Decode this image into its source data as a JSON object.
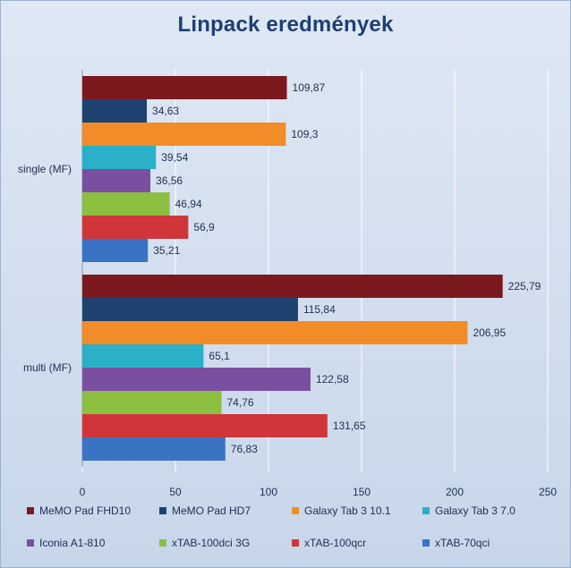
{
  "chart_data": {
    "type": "bar",
    "orientation": "horizontal",
    "title": "Linpack eredmények",
    "xlabel": "",
    "ylabel": "",
    "xlim": [
      0,
      250
    ],
    "ticks": [
      0,
      50,
      100,
      150,
      200,
      250
    ],
    "grid": true,
    "legend_position": "bottom",
    "categories": [
      "single (MF)",
      "multi (MF)"
    ],
    "series": [
      {
        "name": "MeMO Pad FHD10",
        "color": "#7a1a1e",
        "values": [
          109.87,
          225.79
        ],
        "labels": [
          "109,87",
          "225,79"
        ]
      },
      {
        "name": "MeMO Pad HD7",
        "color": "#1f4270",
        "values": [
          34.63,
          115.84
        ],
        "labels": [
          "34,63",
          "115,84"
        ]
      },
      {
        "name": "Galaxy Tab 3 10.1",
        "color": "#f28c28",
        "values": [
          109.3,
          206.95
        ],
        "labels": [
          "109,3",
          "206,95"
        ]
      },
      {
        "name": "Galaxy Tab 3 7.0",
        "color": "#2ab0c8",
        "values": [
          39.54,
          65.1
        ],
        "labels": [
          "39,54",
          "65,1"
        ]
      },
      {
        "name": "Iconia A1-810",
        "color": "#7a4fa0",
        "values": [
          36.56,
          122.58
        ],
        "labels": [
          "36,56",
          "122,58"
        ]
      },
      {
        "name": "xTAB-100dci 3G",
        "color": "#8cbf3f",
        "values": [
          46.94,
          74.76
        ],
        "labels": [
          "46,94",
          "74,76"
        ]
      },
      {
        "name": "xTAB-100qcr",
        "color": "#d0353a",
        "values": [
          56.9,
          131.65
        ],
        "labels": [
          "56,9",
          "131,65"
        ]
      },
      {
        "name": "xTAB-70qci",
        "color": "#3a73c4",
        "values": [
          35.21,
          76.83
        ],
        "labels": [
          "35,21",
          "76,83"
        ]
      }
    ]
  }
}
